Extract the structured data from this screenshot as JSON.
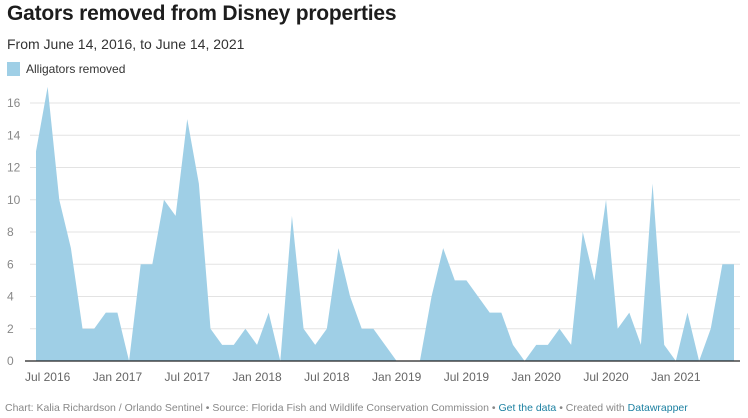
{
  "chart_data": {
    "type": "area",
    "title": "Gators removed from Disney properties",
    "subtitle": "From June 14, 2016, to June 14, 2021",
    "legend": [
      {
        "name": "Alligators removed",
        "color": "#9fcfe6"
      }
    ],
    "legend_position": "top-left",
    "grid": true,
    "ylim": [
      0,
      16
    ],
    "yticks": [
      "0",
      "2",
      "4",
      "6",
      "8",
      "10",
      "12",
      "14",
      "16"
    ],
    "xticks": [
      {
        "label": "Jul 2016",
        "month": "2016-07"
      },
      {
        "label": "Jan 2017",
        "month": "2017-01"
      },
      {
        "label": "Jul 2017",
        "month": "2017-07"
      },
      {
        "label": "Jan 2018",
        "month": "2018-01"
      },
      {
        "label": "Jul 2018",
        "month": "2018-07"
      },
      {
        "label": "Jan 2019",
        "month": "2019-01"
      },
      {
        "label": "Jul 2019",
        "month": "2019-07"
      },
      {
        "label": "Jan 2020",
        "month": "2020-01"
      },
      {
        "label": "Jul 2020",
        "month": "2020-07"
      },
      {
        "label": "Jan 2021",
        "month": "2021-01"
      }
    ],
    "x_start": "2016-06",
    "x_end": "2021-06",
    "series": [
      {
        "name": "Alligators removed",
        "values": [
          13,
          17,
          10,
          7,
          2,
          2,
          3,
          3,
          0,
          6,
          6,
          10,
          9,
          15,
          11,
          2,
          1,
          1,
          2,
          1,
          3,
          0,
          9,
          2,
          1,
          2,
          7,
          4,
          2,
          2,
          1,
          0,
          0,
          0,
          4,
          7,
          5,
          5,
          4,
          3,
          3,
          1,
          0,
          1,
          1,
          2,
          1,
          8,
          5,
          10,
          2,
          3,
          1,
          11,
          1,
          0,
          3,
          0,
          2,
          6,
          6
        ]
      }
    ]
  },
  "footer": {
    "credit": "Chart: Kalia Richardson / Orlando Sentinel • Source: Florida Fish and Wildlife Conservation Commission • ",
    "get_data": "Get the data",
    "created": " • Created with ",
    "datawrapper": "Datawrapper"
  }
}
